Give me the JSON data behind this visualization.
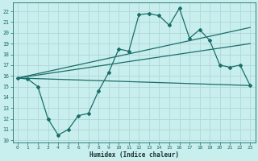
{
  "xlabel": "Humidex (Indice chaleur)",
  "bg_color": "#c8eeed",
  "grid_color": "#b0d8d8",
  "line_color": "#1a6e6a",
  "xlim": [
    -0.5,
    23.5
  ],
  "ylim": [
    9.8,
    22.8
  ],
  "xticks": [
    0,
    1,
    2,
    3,
    4,
    5,
    6,
    7,
    8,
    9,
    10,
    11,
    12,
    13,
    14,
    15,
    16,
    17,
    18,
    19,
    20,
    21,
    22,
    23
  ],
  "yticks": [
    10,
    11,
    12,
    13,
    14,
    15,
    16,
    17,
    18,
    19,
    20,
    21,
    22
  ],
  "series1_x": [
    0,
    1,
    2,
    3,
    4,
    5,
    6,
    7,
    8,
    9,
    10,
    11,
    12,
    13,
    14,
    15,
    16,
    17,
    18,
    19,
    20,
    21,
    22,
    23
  ],
  "series1_y": [
    15.8,
    15.7,
    15.0,
    12.0,
    10.5,
    11.0,
    12.3,
    12.5,
    14.6,
    16.3,
    18.5,
    18.3,
    21.7,
    21.8,
    21.6,
    20.7,
    22.3,
    19.5,
    20.3,
    19.3,
    17.0,
    16.8,
    17.0,
    15.1
  ],
  "series2_x": [
    0,
    23
  ],
  "series2_y": [
    15.8,
    20.5
  ],
  "series3_x": [
    0,
    23
  ],
  "series3_y": [
    15.8,
    19.0
  ],
  "series4_x": [
    0,
    23
  ],
  "series4_y": [
    15.8,
    15.1
  ]
}
